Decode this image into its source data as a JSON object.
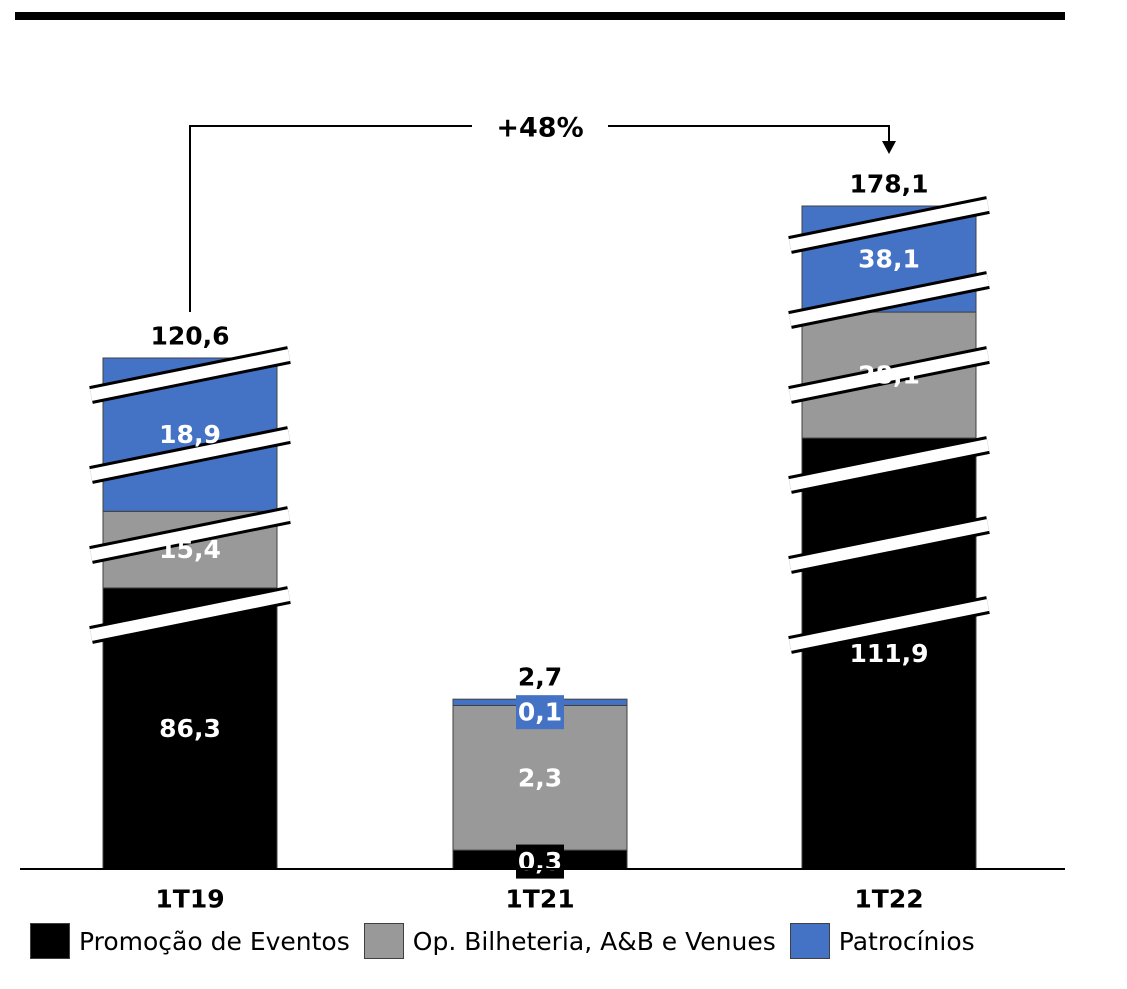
{
  "chart_data": {
    "type": "bar",
    "stacked": true,
    "categories": [
      "1T19",
      "1T21",
      "1T22"
    ],
    "series": [
      {
        "name": "Promoção de Eventos",
        "color": "#000000",
        "values": [
          86.3,
          0.3,
          111.9
        ],
        "labels": [
          "86,3",
          "0,3",
          "111,9"
        ]
      },
      {
        "name": "Op. Bilheteria, A&B e Venues",
        "color": "#999999",
        "values": [
          15.4,
          2.3,
          28.1
        ],
        "labels": [
          "15,4",
          "2,3",
          "28,1"
        ]
      },
      {
        "name": "Patrocínios",
        "color": "#4472c4",
        "values": [
          18.9,
          0.1,
          38.1
        ],
        "labels": [
          "18,9",
          "0,1",
          "38,1"
        ]
      }
    ],
    "totals": [
      120.6,
      2.7,
      178.1
    ],
    "total_labels": [
      "120,6",
      "2,7",
      "178,1"
    ],
    "annotation": {
      "text": "+48%",
      "from": "1T19",
      "to": "1T22"
    },
    "axis_breaks": true,
    "legend_position": "bottom",
    "grid": false,
    "title": "",
    "xlabel": "",
    "ylabel": ""
  }
}
